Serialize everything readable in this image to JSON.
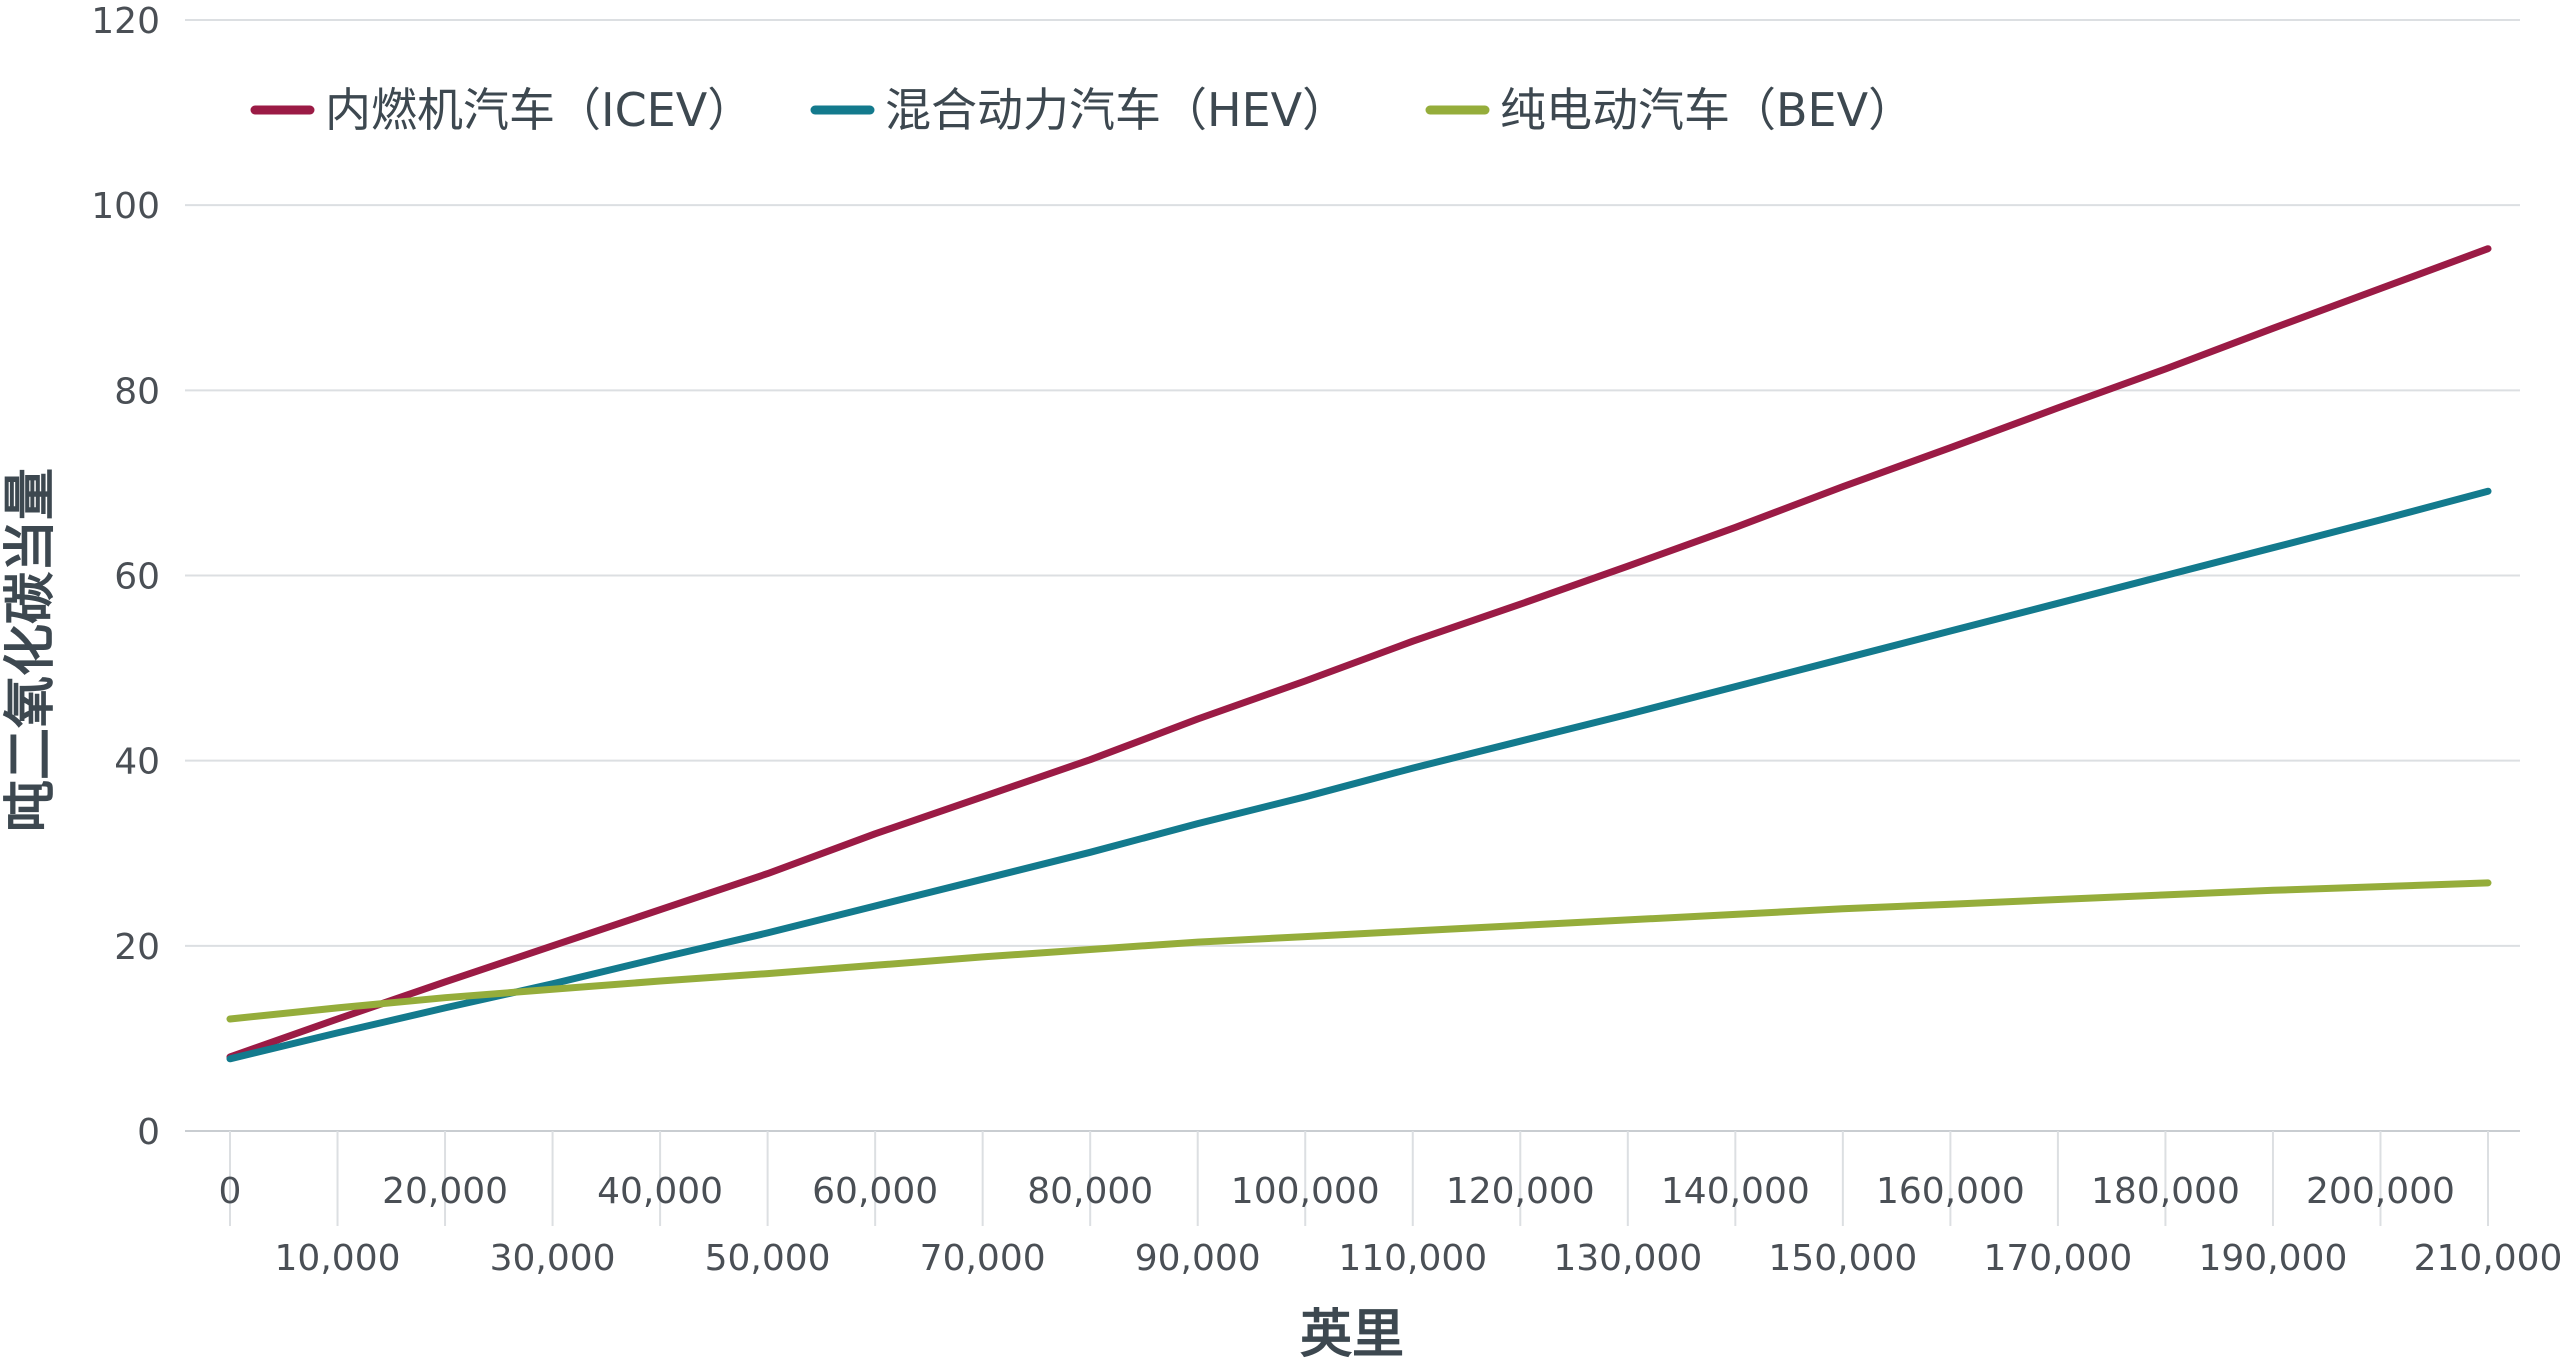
{
  "chart_data": {
    "type": "line",
    "xlabel": "英里",
    "ylabel": "吨二氧化碳当量",
    "xlim": [
      0,
      210000
    ],
    "ylim": [
      0,
      120
    ],
    "yticks": [
      0,
      20,
      40,
      60,
      80,
      100,
      120
    ],
    "xticks": [
      0,
      10000,
      20000,
      30000,
      40000,
      50000,
      60000,
      70000,
      80000,
      90000,
      100000,
      110000,
      120000,
      130000,
      140000,
      150000,
      160000,
      170000,
      180000,
      190000,
      200000,
      210000
    ],
    "xtick_labels": [
      "0",
      "10,000",
      "20,000",
      "30,000",
      "40,000",
      "50,000",
      "60,000",
      "70,000",
      "80,000",
      "90,000",
      "100,000",
      "110,000",
      "120,000",
      "130,000",
      "140,000",
      "150,000",
      "160,000",
      "170,000",
      "180,000",
      "190,000",
      "200,000",
      "210,000"
    ],
    "ytick_labels": [
      "0",
      "20",
      "40",
      "60",
      "80",
      "100",
      "120"
    ],
    "grid": "horizontal",
    "legend_position": "top-left",
    "series": [
      {
        "name": "内燃机汽车（ICEV）",
        "color": "#9b1b45",
        "x": [
          0,
          10000,
          20000,
          30000,
          40000,
          50000,
          60000,
          70000,
          80000,
          90000,
          100000,
          110000,
          120000,
          130000,
          140000,
          150000,
          160000,
          170000,
          180000,
          190000,
          200000,
          210000
        ],
        "values": [
          8.0,
          12.1,
          16.1,
          20.0,
          23.9,
          27.8,
          32.1,
          36.1,
          40.1,
          44.5,
          48.6,
          52.9,
          56.9,
          61.0,
          65.2,
          69.6,
          73.8,
          78.1,
          82.3,
          86.7,
          91.0,
          95.3
        ]
      },
      {
        "name": "混合动力汽车（HEV）",
        "color": "#137a8d",
        "x": [
          0,
          10000,
          20000,
          30000,
          40000,
          50000,
          60000,
          70000,
          80000,
          90000,
          100000,
          110000,
          120000,
          130000,
          140000,
          150000,
          160000,
          170000,
          180000,
          190000,
          200000,
          210000
        ],
        "values": [
          7.8,
          10.6,
          13.3,
          15.9,
          18.7,
          21.4,
          24.3,
          27.2,
          30.1,
          33.2,
          36.1,
          39.2,
          42.1,
          45.0,
          48.0,
          51.0,
          54.0,
          57.0,
          60.0,
          63.0,
          66.0,
          69.1
        ]
      },
      {
        "name": "纯电动汽车（BEV）",
        "color": "#95ad3b",
        "x": [
          0,
          10000,
          20000,
          30000,
          40000,
          50000,
          60000,
          70000,
          80000,
          90000,
          100000,
          110000,
          120000,
          130000,
          140000,
          150000,
          160000,
          170000,
          180000,
          190000,
          200000,
          210000
        ],
        "values": [
          12.1,
          13.3,
          14.4,
          15.3,
          16.2,
          17.0,
          17.9,
          18.8,
          19.6,
          20.4,
          21.0,
          21.6,
          22.2,
          22.8,
          23.4,
          24.0,
          24.5,
          25.0,
          25.5,
          26.0,
          26.4,
          26.8
        ]
      }
    ]
  }
}
